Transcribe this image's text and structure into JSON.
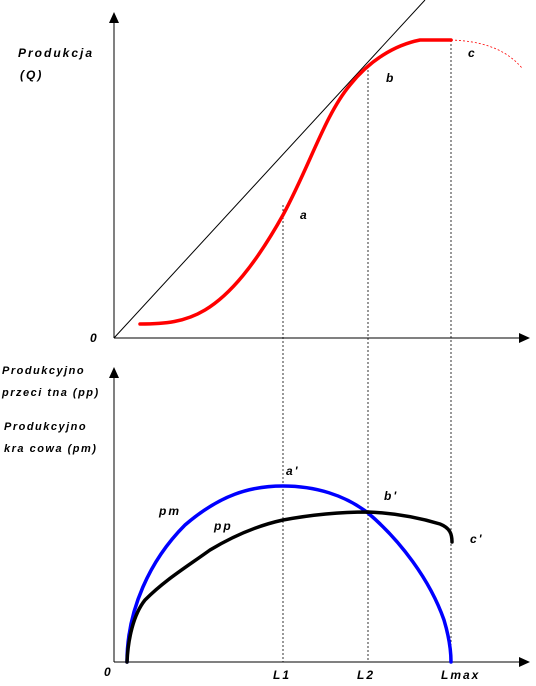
{
  "top_chart": {
    "y_title_line1": "Produkcja",
    "y_title_line2": "(Q)",
    "origin": "0",
    "point_a": "a",
    "point_b": "b",
    "point_c": "c",
    "curve_color": "#ff0000",
    "tangent_color": "#000000"
  },
  "bottom_chart": {
    "y_title_pp_line1": "Produkcyjno",
    "y_title_pp_line2": "przeci tna (pp)",
    "y_title_pm_line1": "Produkcyjno",
    "y_title_pm_line2": "kra cowa (pm)",
    "origin": "0",
    "point_a": "a'",
    "point_b": "b'",
    "point_c": "c'",
    "label_pm": "pm",
    "label_pp": "pp",
    "x_ticks": [
      "L1",
      "L2",
      "Lmax"
    ],
    "pm_color": "#0000ff",
    "pp_color": "#000000"
  }
}
